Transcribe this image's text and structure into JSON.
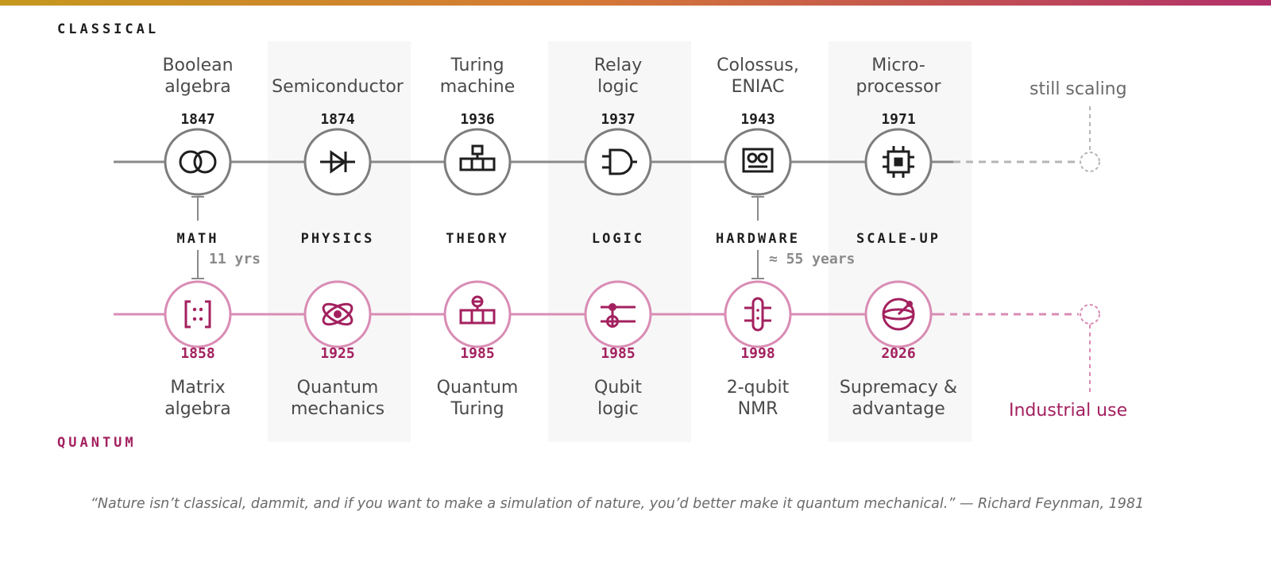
{
  "section_labels": {
    "classical": "CLASSICAL",
    "quantum": "QUANTUM"
  },
  "columns": [
    {
      "category": "MATH",
      "classical": {
        "label_line1": "Boolean",
        "label_line2": "algebra",
        "year": "1847",
        "icon": "interlocking-rings-icon"
      },
      "quantum": {
        "label_line1": "Matrix",
        "label_line2": "algebra",
        "year": "1858",
        "icon": "matrix-brackets-icon"
      }
    },
    {
      "category": "PHYSICS",
      "classical": {
        "label_line1": "",
        "label_line2": "Semiconductor",
        "year": "1874",
        "icon": "diode-icon"
      },
      "quantum": {
        "label_line1": "Quantum",
        "label_line2": "mechanics",
        "year": "1925",
        "icon": "atom-icon"
      }
    },
    {
      "category": "THEORY",
      "classical": {
        "label_line1": "Turing",
        "label_line2": "machine",
        "year": "1936",
        "icon": "turing-tape-icon"
      },
      "quantum": {
        "label_line1": "Quantum",
        "label_line2": "Turing",
        "year": "1985",
        "icon": "quantum-turing-icon"
      }
    },
    {
      "category": "LOGIC",
      "classical": {
        "label_line1": "Relay",
        "label_line2": "logic",
        "year": "1937",
        "icon": "and-gate-icon"
      },
      "quantum": {
        "label_line1": "Qubit",
        "label_line2": "logic",
        "year": "1985",
        "icon": "cnot-gate-icon"
      }
    },
    {
      "category": "HARDWARE",
      "classical": {
        "label_line1": "Colossus,",
        "label_line2": "ENIAC",
        "year": "1943",
        "icon": "computer-panel-icon"
      },
      "quantum": {
        "label_line1": "2-qubit",
        "label_line2": "NMR",
        "year": "1998",
        "icon": "nmr-tube-icon"
      }
    },
    {
      "category": "SCALE-UP",
      "classical": {
        "label_line1": "Micro-",
        "label_line2": "processor",
        "year": "1971",
        "icon": "microchip-icon"
      },
      "quantum": {
        "label_line1": "Supremacy &",
        "label_line2": "advantage",
        "year": "2026",
        "icon": "bloch-sphere-icon"
      }
    }
  ],
  "gaps": {
    "math": "11 yrs",
    "hardware": "≈ 55 years"
  },
  "future": {
    "classical": "still scaling",
    "quantum": "Industrial use"
  },
  "quote": "“Nature isn’t classical, dammit, and if you want to make a simulation of nature, you’d better make it quantum mechanical.” — Richard Feynman, 1981",
  "colors": {
    "classical_line": "#8a8a8a",
    "quantum_line": "#d98cb4",
    "quantum_accent": "#a3215f",
    "band": "#f7f7f7"
  }
}
